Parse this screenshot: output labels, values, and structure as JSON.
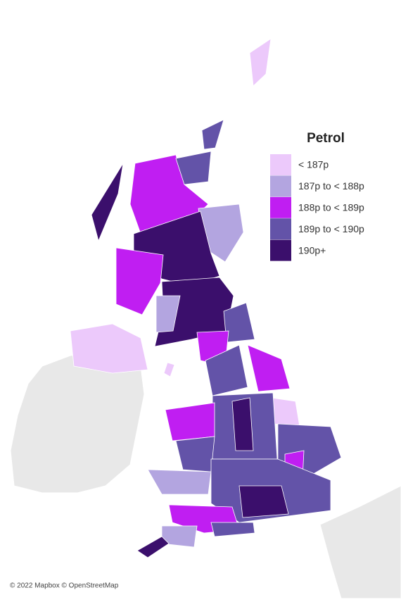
{
  "legend": {
    "title": "Petrol",
    "items": [
      {
        "label": "< 187p",
        "color": "#ecc9fb"
      },
      {
        "label": "187p to < 188p",
        "color": "#b3a5e0"
      },
      {
        "label": "188p to < 189p",
        "color": "#c01ef2"
      },
      {
        "label": "189p to < 190p",
        "color": "#6353a8"
      },
      {
        "label": "190p+",
        "color": "#3b0f6c"
      }
    ]
  },
  "attribution": "© 2022 Mapbox © OpenStreetMap"
}
